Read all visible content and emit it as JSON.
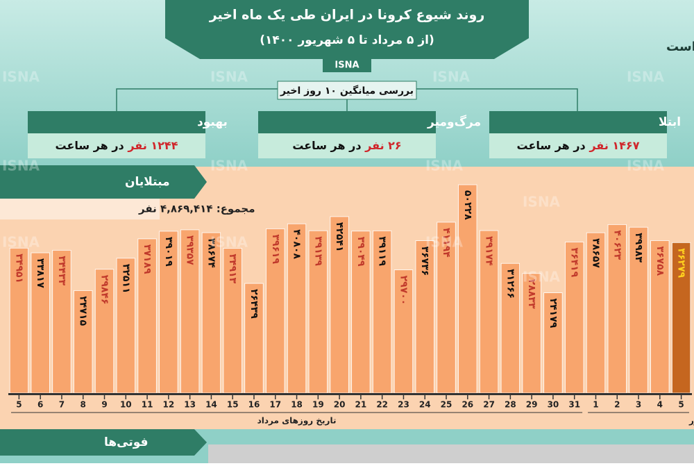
{
  "header": {
    "title": "روند شیوع کرونا در ایران طی یک ماه اخیر",
    "subtitle": "(از ۵ مرداد تا ۵ شهریور ۱۴۰۰)",
    "source": "ISNA",
    "note": "اعداد بر حسب نفر است"
  },
  "summary": {
    "title": "بررسی میانگین ۱۰ روز اخیر",
    "boxes": [
      {
        "label": "بهبود",
        "highlight": "۱۲۴۴ نفر",
        "text": "در هر ساعت"
      },
      {
        "label": "مرگ‌ومیر",
        "highlight": "۲۶ نفر",
        "text": "در هر ساعت"
      },
      {
        "label": "ابتلا",
        "highlight": "۱۴۶۷ نفر",
        "text": "در هر ساعت"
      }
    ]
  },
  "chart_data": {
    "type": "bar",
    "title": "مبتلایان",
    "total": "مجموع: ۴,۸۶۹,۴۱۴ نفر",
    "categories": [
      "5",
      "6",
      "7",
      "8",
      "9",
      "10",
      "11",
      "12",
      "13",
      "14",
      "15",
      "16",
      "17",
      "18",
      "19",
      "20",
      "21",
      "22",
      "23",
      "24",
      "25",
      "26",
      "27",
      "28",
      "29",
      "30",
      "31",
      "1",
      "2",
      "3",
      "4",
      "5"
    ],
    "values": [
      34951,
      33817,
      34433,
      24715,
      29846,
      32511,
      37189,
      39019,
      39357,
      38674,
      34913,
      26439,
      39619,
      40808,
      39139,
      42541,
      39049,
      39119,
      29700,
      36736,
      41194,
      50228,
      39174,
      31266,
      28833,
      24179,
      36419,
      38657,
      40623,
      39983,
      36758,
      36279
    ],
    "value_labels": [
      "۳۴۹۵۱",
      "۳۳۸۱۷",
      "۳۴۴۳۳",
      "۲۴۷۱۵",
      "۲۹۸۴۶",
      "۳۲۵۱۱",
      "۳۷۱۸۹",
      "۳۹۰۱۹",
      "۳۹۳۵۷",
      "۳۸۶۷۴",
      "۳۴۹۱۳",
      "۲۶۴۳۹",
      "۳۹۶۱۹",
      "۴۰۸۰۸",
      "۳۹۱۳۹",
      "۴۲۵۴۱",
      "۳۹۰۴۹",
      "۳۹۱۱۹",
      "۲۹۷۰۰",
      "۳۶۷۳۶",
      "۴۱۱۹۴",
      "۵۰۲۲۸",
      "۳۹۱۷۴",
      "۳۱۲۶۶",
      "۲۸۸۳۳",
      "۲۴۱۷۹",
      "۳۶۴۱۹",
      "۳۸۶۵۷",
      "۴۰۶۲۳",
      "۳۹۹۸۳",
      "۳۶۷۵۸",
      "۳۶۲۷۹"
    ],
    "color": "#f8a56d",
    "highlight_color": "#c5661f",
    "highlight_index": [
      31
    ],
    "label_colors": [
      "#c0392b",
      "#111111",
      "#ffd21f"
    ],
    "groups": [
      {
        "label": "تاریخ روزهای مرداد",
        "count": 27
      },
      {
        "label": "تاریخ روزهای شهریور",
        "count": 5
      }
    ]
  },
  "footer": {
    "title": "فوتی‌ها"
  }
}
